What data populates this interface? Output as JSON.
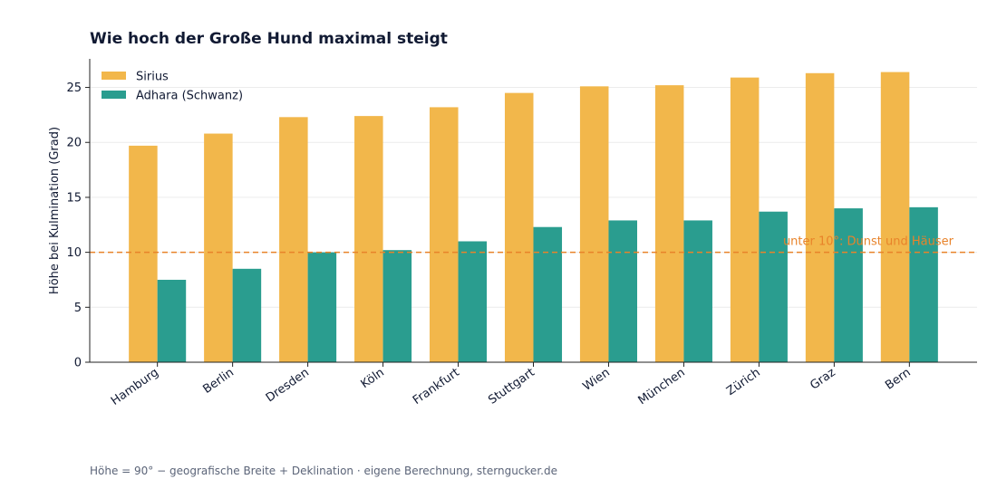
{
  "chart_data": {
    "type": "bar",
    "title": "Wie hoch der Große Hund maximal steigt",
    "xlabel": "",
    "ylabel": "Höhe bei Kulmination (Grad)",
    "categories": [
      "Hamburg",
      "Berlin",
      "Dresden",
      "Köln",
      "Frankfurt",
      "Stuttgart",
      "Wien",
      "München",
      "Zürich",
      "Graz",
      "Bern"
    ],
    "series": [
      {
        "name": "Sirius",
        "color": "#f2b74b",
        "values": [
          19.7,
          20.8,
          22.3,
          22.4,
          23.2,
          24.5,
          25.1,
          25.2,
          25.9,
          26.3,
          26.4
        ]
      },
      {
        "name": "Adhara (Schwanz)",
        "color": "#2a9d8f",
        "values": [
          7.5,
          8.5,
          10.0,
          10.2,
          11.0,
          12.3,
          12.9,
          12.9,
          13.7,
          14.0,
          14.1
        ]
      }
    ],
    "ylim": [
      0,
      27.6
    ],
    "yticks": [
      0,
      5,
      10,
      15,
      20,
      25
    ],
    "grid": "horizontal",
    "legend_position": "top-left",
    "reference_line": {
      "value": 10,
      "label": "unter 10°: Dunst und Häuser",
      "color": "#e8832a"
    }
  },
  "footnote": "Höhe = 90° − geografische Breite + Deklination · eigene Berechnung, sterngucker.de"
}
